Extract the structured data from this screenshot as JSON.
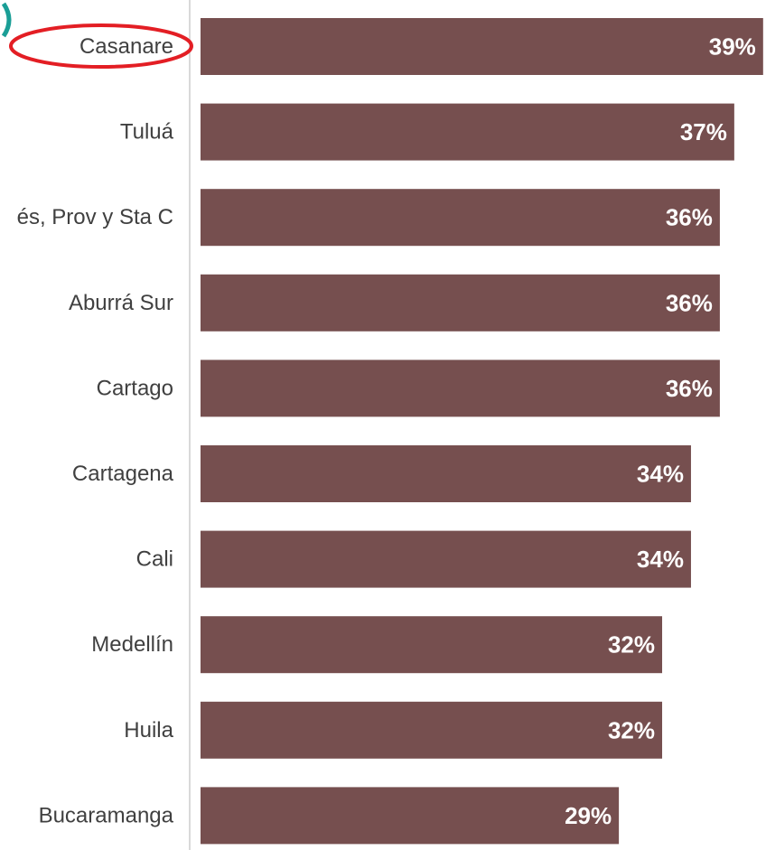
{
  "chart_data": {
    "type": "bar",
    "orientation": "horizontal",
    "categories": [
      "Casanare",
      "Tuluá",
      "és, Prov y Sta C",
      "Aburrá Sur",
      "Cartago",
      "Cartagena",
      "Cali",
      "Medellín",
      "Huila",
      "Bucaramanga"
    ],
    "values": [
      39,
      37,
      36,
      36,
      36,
      34,
      34,
      32,
      32,
      29
    ],
    "value_labels": [
      "39%",
      "37%",
      "36%",
      "36%",
      "36%",
      "34%",
      "34%",
      "32%",
      "32%",
      "29%"
    ],
    "title": "",
    "xlabel": "",
    "ylabel": "",
    "xlim": [
      0,
      39.2
    ],
    "grid": false,
    "legend": "none",
    "highlighted_category": "Casanare"
  },
  "colors": {
    "bar": "#764f4f",
    "value_text": "#ffffff",
    "category_text": "#404040",
    "axis": "#d9d9d9",
    "highlight_ellipse": "#e31e24",
    "corner_mark": "#1a9e96"
  }
}
